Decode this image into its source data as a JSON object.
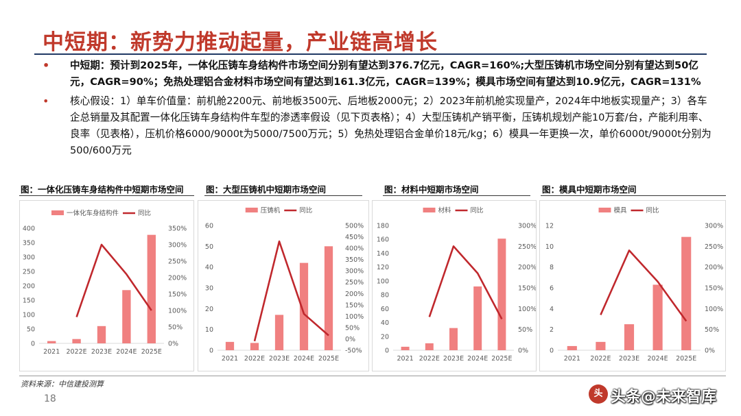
{
  "slide": {
    "title": "中短期：新势力推动起量，产业链高增长",
    "bullets": [
      "中短期：预计到2025年，一体化压铸车身结构件市场空间分别有望达到376.7亿元，CAGR=160%;大型压铸机市场空间分别有望达到50亿元，CAGR=90%；免热处理铝合金材料市场空间有望达到161.3亿元，CAGR=139%；模具市场空间有望达到10.9亿元，CAGR=131%",
      "核心假设：1）单车价值量：前机舱2200元、前地板3500元、后地板2000元；2）2023年前机舱实现量产，2024年中地板实现量产；3）各车企总销量及其配置一体化压铸车身结构件车型的渗透率假设（见下页表格）；4）大型压铸机产销平衡，压铸机规划产能10万套/台，产能利用率、良率（见表格），压机价格6000/9000t为5000/7500万元；5）免热处理铝合金单价18元/kg；6）模具一年更换一次，单价6000t/9000t分别为500/600万元"
    ],
    "bullet_marker": "•",
    "source": "资料来源：中信建投测算",
    "page_number": "18",
    "watermark": "头条@未来智库",
    "watermark_icon": "头"
  },
  "colors": {
    "title": "#c0392b",
    "bar": "#f08080",
    "line": "#c0282d",
    "axis_text": "#595959"
  },
  "chart_data": [
    {
      "type": "bar",
      "caption": "图：一体化压铸车身结构件中短期市场空间",
      "categories": [
        "2021",
        "2022E",
        "2023E",
        "2024E",
        "2025E"
      ],
      "series": [
        {
          "name": "一体化车身结构件",
          "type": "bar",
          "axis": "left",
          "values": [
            8,
            15,
            60,
            185,
            377
          ]
        },
        {
          "name": "同比",
          "type": "line",
          "axis": "right",
          "values": [
            null,
            80,
            300,
            210,
            100
          ]
        }
      ],
      "y_left": {
        "min": 0,
        "max": 400,
        "ticks": [
          0,
          50,
          100,
          150,
          200,
          250,
          300,
          350,
          400
        ]
      },
      "y_right": {
        "min": 0,
        "max": 350,
        "ticks": [
          0,
          50,
          100,
          150,
          200,
          250,
          300,
          350
        ],
        "unit": "%"
      },
      "legend": "top-center"
    },
    {
      "type": "bar",
      "caption": "图：大型压铸机中短期市场空间",
      "categories": [
        "2021",
        "2022E",
        "2023E",
        "2024E",
        "2025E"
      ],
      "series": [
        {
          "name": "压铸机",
          "type": "bar",
          "axis": "left",
          "values": [
            4,
            3.5,
            17,
            42,
            50
          ]
        },
        {
          "name": "同比",
          "type": "line",
          "axis": "right",
          "values": [
            null,
            -10,
            430,
            110,
            15
          ]
        }
      ],
      "y_left": {
        "min": 0,
        "max": 60,
        "ticks": [
          0,
          10,
          20,
          30,
          40,
          50,
          60
        ]
      },
      "y_right": {
        "min": -50,
        "max": 500,
        "ticks": [
          -50,
          0,
          50,
          100,
          150,
          200,
          250,
          300,
          350,
          400,
          450,
          500
        ],
        "unit": "%"
      },
      "legend": "top-center"
    },
    {
      "type": "bar",
      "caption": "图：材料中短期市场空间",
      "categories": [
        "2021",
        "2022E",
        "2023E",
        "2024E",
        "2025E"
      ],
      "series": [
        {
          "name": "材料",
          "type": "bar",
          "axis": "left",
          "values": [
            5,
            10,
            32,
            92,
            161
          ]
        },
        {
          "name": "同比",
          "type": "line",
          "axis": "right",
          "values": [
            null,
            80,
            250,
            185,
            75
          ]
        }
      ],
      "y_left": {
        "min": 0,
        "max": 180,
        "ticks": [
          0,
          20,
          40,
          60,
          80,
          100,
          120,
          140,
          160,
          180
        ]
      },
      "y_right": {
        "min": 0,
        "max": 300,
        "ticks": [
          0,
          50,
          100,
          150,
          200,
          250,
          300
        ],
        "unit": "%"
      },
      "legend": "top-center"
    },
    {
      "type": "bar",
      "caption": "图：模具中短期市场空间",
      "categories": [
        "2021",
        "2022E",
        "2023E",
        "2024E",
        "2025E"
      ],
      "series": [
        {
          "name": "模具",
          "type": "bar",
          "axis": "left",
          "values": [
            0.4,
            0.8,
            2.5,
            6.3,
            10.9
          ]
        },
        {
          "name": "同比",
          "type": "line",
          "axis": "right",
          "values": [
            null,
            85,
            240,
            165,
            70
          ]
        }
      ],
      "y_left": {
        "min": 0,
        "max": 12,
        "ticks": [
          0,
          2,
          4,
          6,
          8,
          10,
          12
        ]
      },
      "y_right": {
        "min": 0,
        "max": 300,
        "ticks": [
          0,
          50,
          100,
          150,
          200,
          250,
          300
        ],
        "unit": "%"
      },
      "legend": "top-center"
    }
  ]
}
